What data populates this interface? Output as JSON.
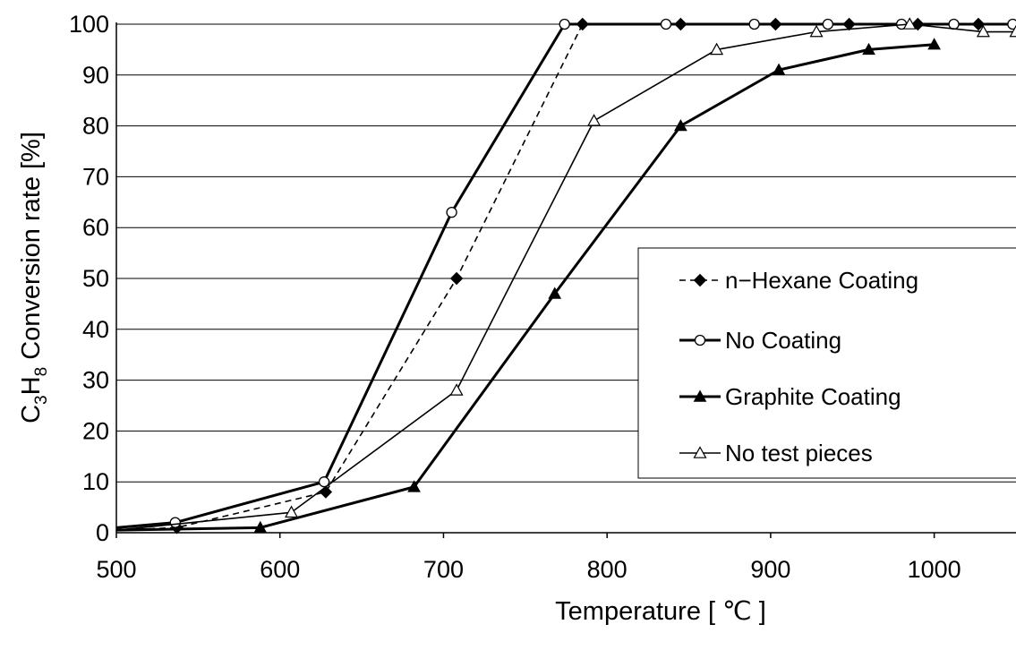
{
  "chart_data": {
    "type": "line",
    "title": "",
    "xlabel": "Temperature [ ℃ ]",
    "ylabel": "C3H8 Conversion rate [%]",
    "ylabel_parts": {
      "c": "C",
      "c_sub": "3",
      "h": "H",
      "h_sub": "8",
      "rest": " Conversion rate [%]"
    },
    "xlim": [
      500,
      1050
    ],
    "ylim": [
      0,
      100
    ],
    "xticks": [
      500,
      600,
      700,
      800,
      900,
      1000
    ],
    "yticks": [
      0,
      10,
      20,
      30,
      40,
      50,
      60,
      70,
      80,
      90,
      100
    ],
    "grid": "horizontal",
    "legend_position": "right",
    "series": [
      {
        "name": "n−Hexane Coating",
        "marker": "diamond-filled",
        "line": "dashed-thin",
        "x": [
          500,
          537,
          628,
          708,
          785,
          845,
          903,
          948,
          990,
          1027
        ],
        "y": [
          0.5,
          1,
          8,
          50,
          100,
          100,
          100,
          100,
          100,
          100
        ]
      },
      {
        "name": "No Coating",
        "marker": "circle-open",
        "line": "solid-thick",
        "x": [
          500,
          536,
          627,
          705,
          774,
          836,
          890,
          935,
          980,
          1012,
          1048
        ],
        "y": [
          1,
          2,
          10,
          63,
          100,
          100,
          100,
          100,
          100,
          100,
          100
        ]
      },
      {
        "name": "Graphite Coating",
        "marker": "triangle-filled",
        "line": "solid-thick",
        "x": [
          500,
          588,
          682,
          768,
          845,
          905,
          960,
          1000
        ],
        "y": [
          0.5,
          1,
          9,
          47,
          80,
          91,
          95,
          96
        ]
      },
      {
        "name": "No test pieces",
        "marker": "triangle-open",
        "line": "solid-thin",
        "x": [
          500,
          607,
          708,
          792,
          867,
          928,
          985,
          1030,
          1050
        ],
        "y": [
          0.5,
          4,
          28,
          81,
          95,
          98.5,
          100,
          98.5,
          98.5
        ]
      }
    ]
  }
}
